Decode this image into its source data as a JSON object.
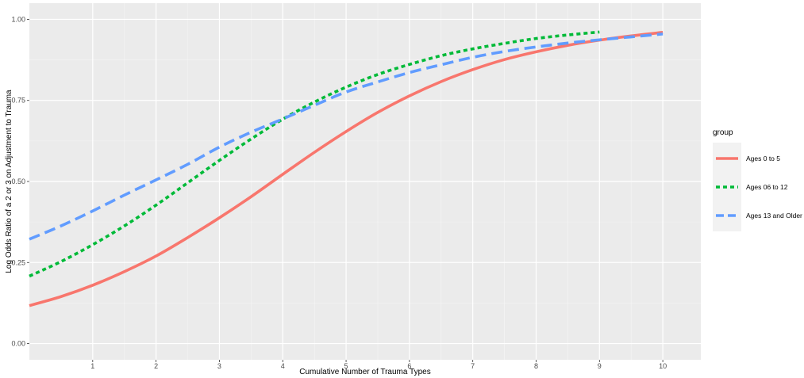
{
  "chart_data": {
    "type": "line",
    "title": "",
    "xlabel": "Cumulative Number of Trauma Types",
    "ylabel": "Log Odds Ratio of a 2 or 3 on Adjustment to Trauma",
    "xlim": [
      0,
      10.6
    ],
    "ylim": [
      -0.05,
      1.05
    ],
    "x_ticks": [
      1,
      2,
      3,
      4,
      5,
      6,
      7,
      8,
      9,
      10
    ],
    "x_tick_labels": [
      "1",
      "2",
      "3",
      "4",
      "5",
      "6",
      "7",
      "8",
      "9",
      "10"
    ],
    "y_ticks": [
      0.0,
      0.25,
      0.5,
      0.75,
      1.0
    ],
    "y_tick_labels": [
      "0.00",
      "0.25",
      "0.50",
      "0.75",
      "1.00"
    ],
    "grid": true,
    "legend": {
      "title": "group",
      "position": "right",
      "labels": [
        "Ages 0 to 5",
        "Ages 06 to 12",
        "Ages 13 and Older"
      ]
    },
    "series": [
      {
        "name": "Ages 0 to 5",
        "color": "#F8766D",
        "line_style": "solid",
        "x": [
          0,
          0.5,
          1,
          1.5,
          2,
          2.5,
          3,
          3.5,
          4,
          4.5,
          5,
          5.5,
          6,
          6.5,
          7,
          7.5,
          8,
          8.5,
          9,
          9.5,
          10
        ],
        "y": [
          0.117,
          0.145,
          0.18,
          0.222,
          0.27,
          0.327,
          0.388,
          0.453,
          0.522,
          0.59,
          0.654,
          0.713,
          0.764,
          0.808,
          0.845,
          0.876,
          0.9,
          0.92,
          0.936,
          0.949,
          0.96
        ]
      },
      {
        "name": "Ages 06 to 12",
        "color": "#00BA38",
        "line_style": "dotted",
        "x": [
          0,
          0.5,
          1,
          1.5,
          2,
          2.5,
          3,
          3.5,
          4,
          4.5,
          5,
          5.5,
          6,
          6.5,
          7,
          7.5,
          8,
          8.5,
          9
        ],
        "y": [
          0.208,
          0.253,
          0.305,
          0.363,
          0.427,
          0.496,
          0.565,
          0.631,
          0.692,
          0.745,
          0.791,
          0.83,
          0.861,
          0.888,
          0.909,
          0.926,
          0.941,
          0.952,
          0.961
        ]
      },
      {
        "name": "Ages 13 and Older",
        "color": "#619CFF",
        "line_style": "dashed",
        "x": [
          0,
          0.5,
          1,
          1.5,
          2,
          2.5,
          3,
          3.5,
          4,
          4.5,
          5,
          5.5,
          6,
          6.5,
          7,
          7.5,
          8,
          8.5,
          9,
          9.5,
          10
        ],
        "y": [
          0.322,
          0.363,
          0.409,
          0.458,
          0.505,
          0.553,
          0.606,
          0.652,
          0.693,
          0.735,
          0.776,
          0.807,
          0.836,
          0.86,
          0.883,
          0.901,
          0.915,
          0.927,
          0.937,
          0.946,
          0.955
        ]
      }
    ]
  }
}
